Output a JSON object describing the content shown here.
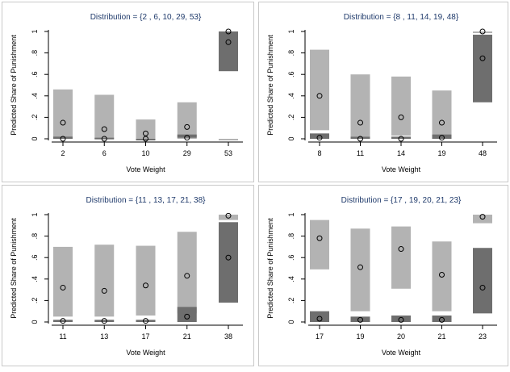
{
  "colors": {
    "panel_border": "#c9c9c9",
    "title": "#1f3a6b",
    "light_box": "#b3b3b3",
    "dark_box": "#6e6e6e",
    "point": "#000000"
  },
  "chart_data": [
    {
      "type": "box-range",
      "title": "Distribution = {2 , 6, 10, 29, 53}",
      "xlabel": "Vote Weight",
      "ylabel": "Predicted Share of Punishment",
      "ylim": [
        0,
        1
      ],
      "yticks": [
        "0",
        ".2",
        ".4",
        ".6",
        ".8",
        "1"
      ],
      "grid": false,
      "categories": [
        "2",
        "6",
        "10",
        "29",
        "53"
      ],
      "series": [
        {
          "lo": [
            0.01,
            0.0,
            0.0,
            0.0,
            0.0
          ],
          "hi": [
            0.46,
            0.41,
            0.18,
            0.34,
            0.0
          ],
          "point": [
            0.15,
            0.09,
            0.05,
            0.11,
            0.9
          ]
        },
        {
          "lo": [
            0.0,
            0.0,
            0.0,
            0.01,
            0.63
          ],
          "hi": [
            0.02,
            0.01,
            0.0,
            0.04,
            1.0
          ],
          "point": [
            0.0,
            0.0,
            0.0,
            0.01,
            1.0
          ]
        }
      ]
    },
    {
      "type": "box-range",
      "title": "Distribution = {8 , 11, 14, 19, 48}",
      "xlabel": "Vote Weight",
      "ylabel": "Predicted Share of Punishment",
      "ylim": [
        0,
        1
      ],
      "yticks": [
        "0",
        ".2",
        ".4",
        ".6",
        ".8",
        "1"
      ],
      "grid": false,
      "categories": [
        "8",
        "11",
        "14",
        "19",
        "48"
      ],
      "series": [
        {
          "lo": [
            0.08,
            0.02,
            0.03,
            0.03,
            0.99
          ],
          "hi": [
            0.83,
            0.6,
            0.58,
            0.45,
            1.0
          ],
          "point": [
            0.4,
            0.15,
            0.2,
            0.15,
            0.75
          ]
        },
        {
          "lo": [
            0.0,
            0.0,
            0.0,
            0.0,
            0.34
          ],
          "hi": [
            0.05,
            0.02,
            0.02,
            0.04,
            0.97
          ],
          "point": [
            0.01,
            0.0,
            0.0,
            0.01,
            1.0
          ]
        }
      ]
    },
    {
      "type": "box-range",
      "title": "Distribution = {11 , 13, 17, 21, 38}",
      "xlabel": "Vote Weight",
      "ylabel": "Predicted Share of Punishment",
      "ylim": [
        0,
        1
      ],
      "yticks": [
        "0",
        ".2",
        ".4",
        ".6",
        ".8",
        "1"
      ],
      "grid": false,
      "categories": [
        "11",
        "13",
        "17",
        "21",
        "38"
      ],
      "series": [
        {
          "lo": [
            0.05,
            0.05,
            0.06,
            0.08,
            0.95
          ],
          "hi": [
            0.7,
            0.72,
            0.71,
            0.84,
            1.0
          ],
          "point": [
            0.32,
            0.29,
            0.34,
            0.43,
            0.6
          ]
        },
        {
          "lo": [
            0.0,
            0.0,
            0.0,
            0.0,
            0.18
          ],
          "hi": [
            0.02,
            0.02,
            0.02,
            0.14,
            0.93
          ],
          "point": [
            0.01,
            0.01,
            0.01,
            0.05,
            0.99
          ]
        }
      ]
    },
    {
      "type": "box-range",
      "title": "Distribution = {17 , 19, 20, 21, 23}",
      "xlabel": "Vote Weight",
      "ylabel": "Predicted Share of Punishment",
      "ylim": [
        0,
        1
      ],
      "yticks": [
        "0",
        ".2",
        ".4",
        ".6",
        ".8",
        "1"
      ],
      "grid": false,
      "categories": [
        "17",
        "19",
        "20",
        "21",
        "23"
      ],
      "series": [
        {
          "lo": [
            0.49,
            0.1,
            0.31,
            0.1,
            0.92
          ],
          "hi": [
            0.95,
            0.87,
            0.89,
            0.75,
            1.0
          ],
          "point": [
            0.78,
            0.51,
            0.68,
            0.44,
            0.32
          ]
        },
        {
          "lo": [
            0.0,
            0.0,
            0.0,
            0.0,
            0.08
          ],
          "hi": [
            0.1,
            0.05,
            0.06,
            0.06,
            0.69
          ],
          "point": [
            0.03,
            0.02,
            0.02,
            0.02,
            0.98
          ]
        }
      ]
    }
  ]
}
